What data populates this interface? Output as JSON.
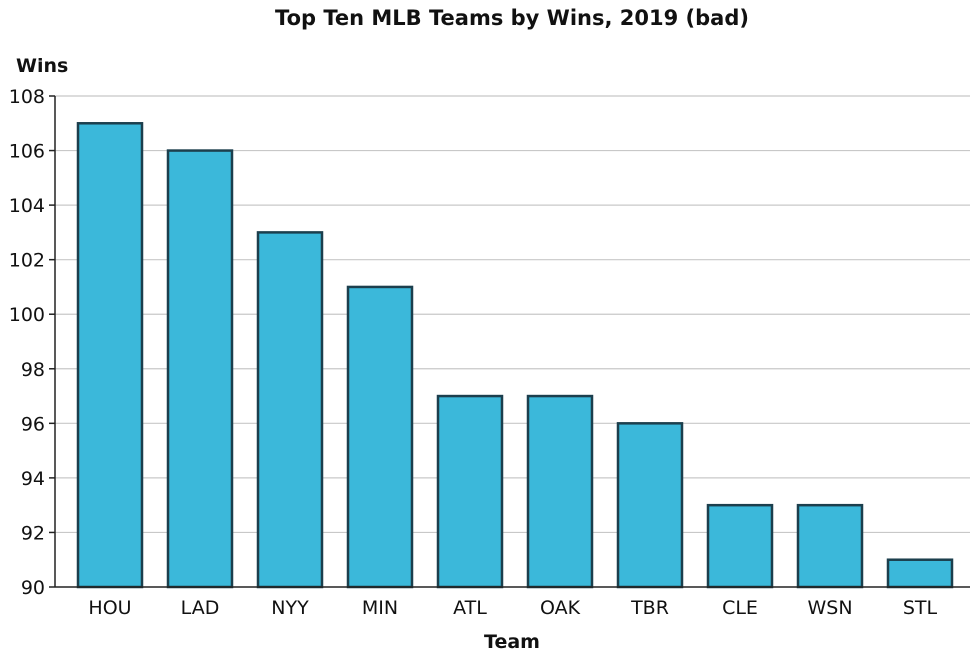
{
  "chart_data": {
    "type": "bar",
    "title": "Top Ten MLB Teams by Wins, 2019 (bad)",
    "xlabel": "Team",
    "ylabel": "Wins",
    "categories": [
      "HOU",
      "LAD",
      "NYY",
      "MIN",
      "ATL",
      "OAK",
      "TBR",
      "CLE",
      "WSN",
      "STL"
    ],
    "values": [
      107,
      106,
      103,
      101,
      97,
      97,
      96,
      93,
      93,
      91
    ],
    "ylim": [
      90,
      108
    ],
    "yticks": [
      90,
      92,
      94,
      96,
      98,
      100,
      102,
      104,
      106,
      108
    ],
    "grid": true,
    "legend": "none",
    "colors": {
      "bar_fill": "#3bb8da",
      "bar_stroke": "#1c3f4d",
      "grid": "#c8c8c8",
      "axis": "#222222"
    }
  }
}
